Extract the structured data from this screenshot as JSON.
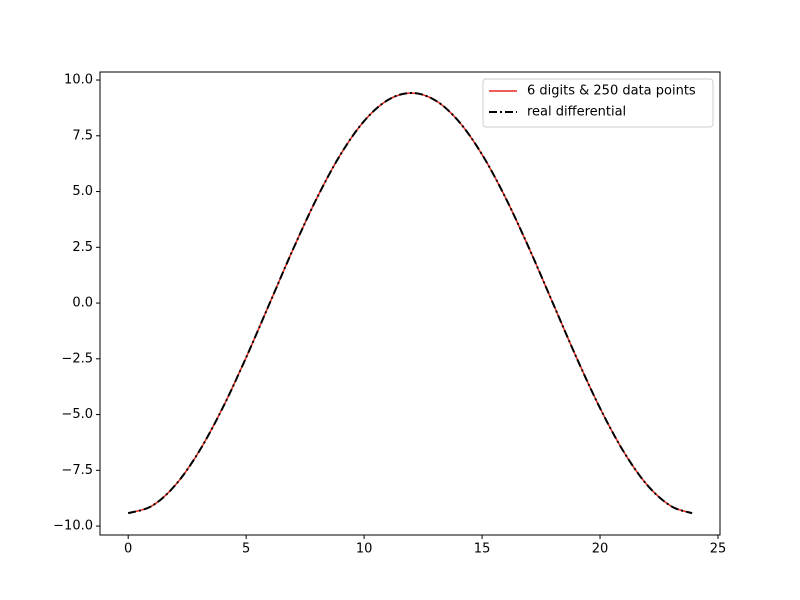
{
  "chart_data": {
    "type": "line",
    "x": [
      0,
      1,
      2,
      3,
      4,
      5,
      6,
      7,
      8,
      9,
      10,
      11,
      12,
      13,
      14,
      15,
      16,
      17,
      18,
      19,
      20,
      21,
      22,
      23,
      23.9
    ],
    "series": [
      {
        "name": "6 digits & 250 data points",
        "color": "#e8281e",
        "dash": "solid",
        "values": [
          -9.42,
          -9.1,
          -8.16,
          -6.66,
          -4.71,
          -2.44,
          0,
          2.44,
          4.71,
          6.66,
          8.16,
          9.1,
          9.42,
          9.1,
          8.16,
          6.66,
          4.71,
          2.44,
          0,
          -2.44,
          -4.71,
          -6.66,
          -8.16,
          -9.1,
          -9.42
        ]
      },
      {
        "name": "real differential",
        "color": "#000000",
        "dash": "dashdot",
        "values": [
          -9.42,
          -9.1,
          -8.16,
          -6.66,
          -4.71,
          -2.44,
          0,
          2.44,
          4.71,
          6.66,
          8.16,
          9.1,
          9.42,
          9.1,
          8.16,
          6.66,
          4.71,
          2.44,
          0,
          -2.44,
          -4.71,
          -6.66,
          -8.16,
          -9.1,
          -9.42
        ]
      }
    ],
    "xlim": [
      -1.195,
      25.085
    ],
    "xticks": [
      0,
      5,
      10,
      15,
      20,
      25
    ],
    "ylim": [
      -10.4,
      10.36
    ],
    "yticks": [
      {
        "value": -10,
        "label": "−10.0"
      },
      {
        "value": -7.5,
        "label": "−7.5"
      },
      {
        "value": -5,
        "label": "−5.0"
      },
      {
        "value": -2.5,
        "label": "−2.5"
      },
      {
        "value": 0,
        "label": "0.0"
      },
      {
        "value": 2.5,
        "label": "2.5"
      },
      {
        "value": 5,
        "label": "5.0"
      },
      {
        "value": 7.5,
        "label": "7.5"
      },
      {
        "value": 10,
        "label": "10.0"
      }
    ],
    "legend": "upper right"
  }
}
